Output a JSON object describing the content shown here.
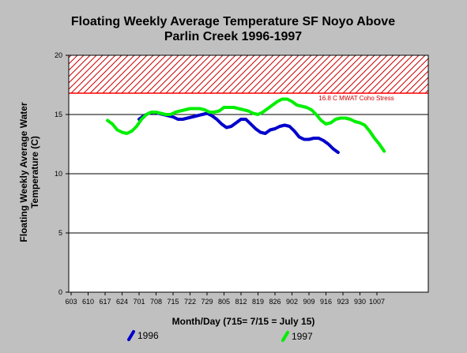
{
  "chart_data": {
    "type": "line",
    "title": [
      "Floating Weekly Average Temperature SF Noyo Above",
      "Parlin Creek 1996-1997"
    ],
    "ylabel": [
      "Floating Weekly Average Water",
      "Temperature (C)"
    ],
    "xlabel": "Month/Day (715= 7/15 = July 15)",
    "ylim": [
      0,
      20
    ],
    "yticks": [
      0,
      5,
      10,
      15,
      20
    ],
    "xticks": [
      "603",
      "610",
      "617",
      "624",
      "701",
      "708",
      "715",
      "722",
      "729",
      "805",
      "812",
      "819",
      "826",
      "902",
      "909",
      "916",
      "923",
      "930",
      "1007"
    ],
    "grid": "horizontal",
    "threshold": {
      "value": 16.8,
      "upper": 20,
      "label": "16.8 C MWAT Coho Stress",
      "color": "#ff0000"
    },
    "series": [
      {
        "name": "1996",
        "color": "#0000cc",
        "points": [
          [
            "701",
            14.6
          ],
          [
            "703",
            14.9
          ],
          [
            "705",
            15.1
          ],
          [
            "707",
            15.2
          ],
          [
            "709",
            15.1
          ],
          [
            "711",
            15.0
          ],
          [
            "713",
            14.9
          ],
          [
            "715",
            14.8
          ],
          [
            "717",
            14.6
          ],
          [
            "719",
            14.6
          ],
          [
            "721",
            14.7
          ],
          [
            "723",
            14.8
          ],
          [
            "725",
            14.9
          ],
          [
            "727",
            15.0
          ],
          [
            "729",
            15.1
          ],
          [
            "731",
            14.9
          ],
          [
            "802",
            14.6
          ],
          [
            "804",
            14.2
          ],
          [
            "806",
            13.9
          ],
          [
            "808",
            14.0
          ],
          [
            "810",
            14.3
          ],
          [
            "812",
            14.6
          ],
          [
            "814",
            14.6
          ],
          [
            "816",
            14.2
          ],
          [
            "818",
            13.8
          ],
          [
            "820",
            13.5
          ],
          [
            "822",
            13.4
          ],
          [
            "824",
            13.7
          ],
          [
            "826",
            13.8
          ],
          [
            "828",
            14.0
          ],
          [
            "830",
            14.1
          ],
          [
            "901",
            14.0
          ],
          [
            "903",
            13.6
          ],
          [
            "905",
            13.1
          ],
          [
            "907",
            12.9
          ],
          [
            "909",
            12.9
          ],
          [
            "911",
            13.0
          ],
          [
            "913",
            13.0
          ],
          [
            "915",
            12.8
          ],
          [
            "917",
            12.5
          ],
          [
            "919",
            12.1
          ],
          [
            "921",
            11.8
          ]
        ]
      },
      {
        "name": "1997",
        "color": "#00ee00",
        "points": [
          [
            "618",
            14.5
          ],
          [
            "620",
            14.2
          ],
          [
            "622",
            13.7
          ],
          [
            "624",
            13.5
          ],
          [
            "626",
            13.4
          ],
          [
            "628",
            13.6
          ],
          [
            "630",
            14.0
          ],
          [
            "702",
            14.6
          ],
          [
            "704",
            15.0
          ],
          [
            "706",
            15.2
          ],
          [
            "708",
            15.2
          ],
          [
            "710",
            15.1
          ],
          [
            "712",
            15.0
          ],
          [
            "714",
            15.0
          ],
          [
            "716",
            15.2
          ],
          [
            "718",
            15.3
          ],
          [
            "720",
            15.4
          ],
          [
            "722",
            15.5
          ],
          [
            "724",
            15.5
          ],
          [
            "726",
            15.5
          ],
          [
            "728",
            15.4
          ],
          [
            "730",
            15.2
          ],
          [
            "801",
            15.2
          ],
          [
            "803",
            15.3
          ],
          [
            "805",
            15.6
          ],
          [
            "807",
            15.6
          ],
          [
            "809",
            15.6
          ],
          [
            "811",
            15.5
          ],
          [
            "813",
            15.4
          ],
          [
            "815",
            15.3
          ],
          [
            "817",
            15.1
          ],
          [
            "819",
            15.0
          ],
          [
            "821",
            15.2
          ],
          [
            "823",
            15.5
          ],
          [
            "825",
            15.8
          ],
          [
            "827",
            16.1
          ],
          [
            "829",
            16.3
          ],
          [
            "831",
            16.3
          ],
          [
            "902",
            16.1
          ],
          [
            "904",
            15.8
          ],
          [
            "906",
            15.7
          ],
          [
            "908",
            15.6
          ],
          [
            "910",
            15.4
          ],
          [
            "912",
            15.0
          ],
          [
            "914",
            14.5
          ],
          [
            "916",
            14.2
          ],
          [
            "918",
            14.3
          ],
          [
            "920",
            14.6
          ],
          [
            "922",
            14.7
          ],
          [
            "924",
            14.7
          ],
          [
            "926",
            14.6
          ],
          [
            "928",
            14.4
          ],
          [
            "930",
            14.3
          ],
          [
            "1002",
            14.1
          ],
          [
            "1004",
            13.6
          ],
          [
            "1006",
            13.0
          ],
          [
            "1008",
            12.5
          ],
          [
            "1010",
            11.9
          ]
        ]
      }
    ]
  }
}
